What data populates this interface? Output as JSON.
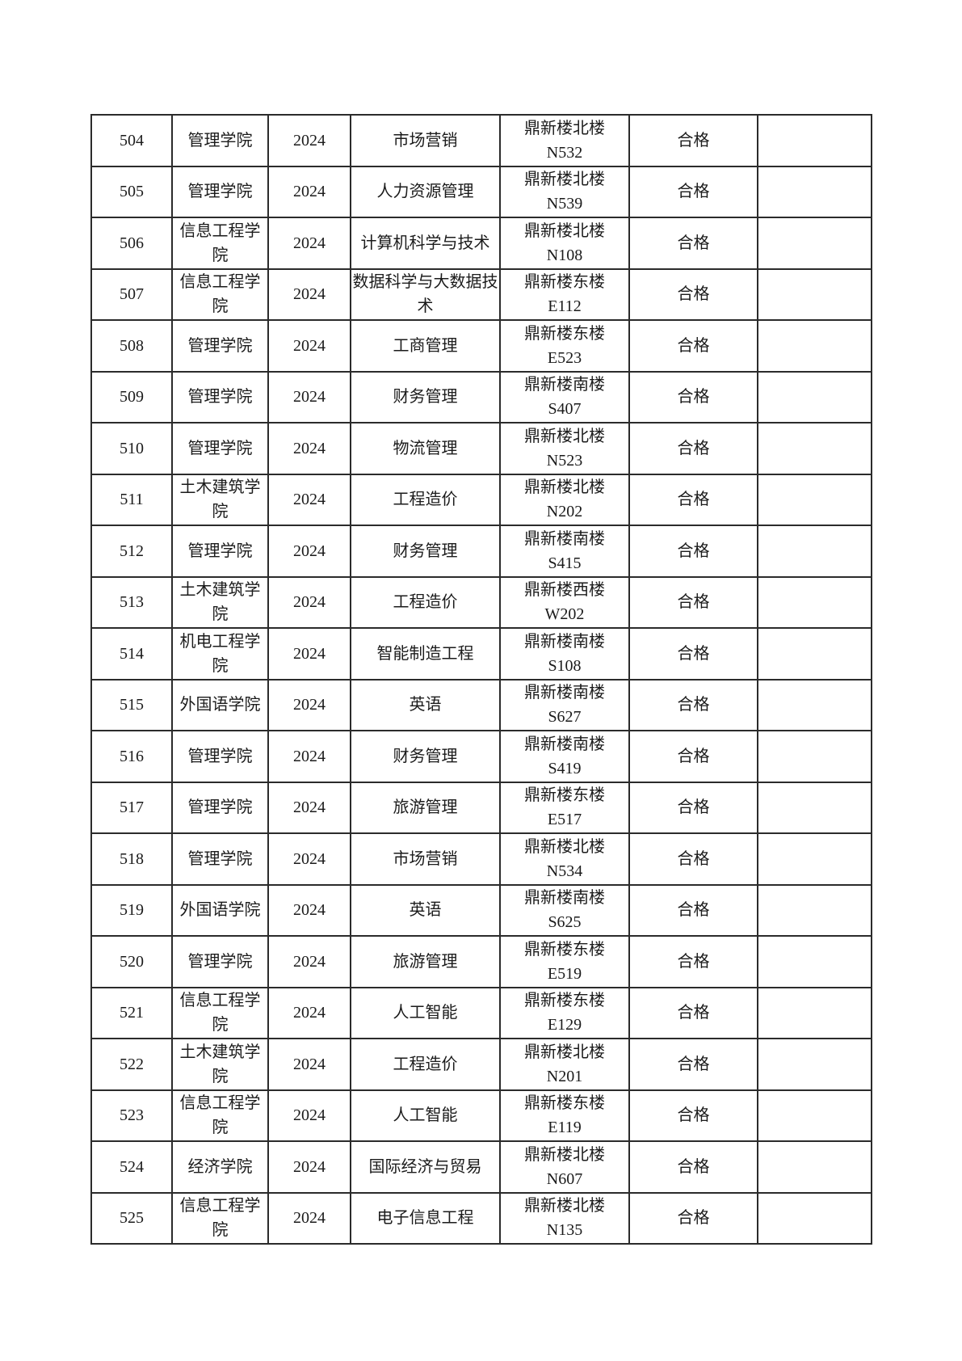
{
  "document": {
    "kind": "exam-room-qualification-table-page",
    "colors": {
      "background": "#ffffff",
      "border": "#2b2b2b",
      "text": "#1b1b1b"
    }
  },
  "table": {
    "rows": [
      {
        "no": "504",
        "college": "管理学院",
        "year": "2024",
        "major": "市场营销",
        "building": "鼎新楼北楼",
        "room": "N532",
        "result": "合格",
        "note": ""
      },
      {
        "no": "505",
        "college": "管理学院",
        "year": "2024",
        "major": "人力资源管理",
        "building": "鼎新楼北楼",
        "room": "N539",
        "result": "合格",
        "note": ""
      },
      {
        "no": "506",
        "college": "信息工程学院",
        "year": "2024",
        "major": "计算机科学与技术",
        "building": "鼎新楼北楼",
        "room": "N108",
        "result": "合格",
        "note": ""
      },
      {
        "no": "507",
        "college": "信息工程学院",
        "year": "2024",
        "major": "数据科学与大数据技术",
        "building": "鼎新楼东楼",
        "room": "E112",
        "result": "合格",
        "note": ""
      },
      {
        "no": "508",
        "college": "管理学院",
        "year": "2024",
        "major": "工商管理",
        "building": "鼎新楼东楼",
        "room": "E523",
        "result": "合格",
        "note": ""
      },
      {
        "no": "509",
        "college": "管理学院",
        "year": "2024",
        "major": "财务管理",
        "building": "鼎新楼南楼",
        "room": "S407",
        "result": "合格",
        "note": ""
      },
      {
        "no": "510",
        "college": "管理学院",
        "year": "2024",
        "major": "物流管理",
        "building": "鼎新楼北楼",
        "room": "N523",
        "result": "合格",
        "note": ""
      },
      {
        "no": "511",
        "college": "土木建筑学院",
        "year": "2024",
        "major": "工程造价",
        "building": "鼎新楼北楼",
        "room": "N202",
        "result": "合格",
        "note": ""
      },
      {
        "no": "512",
        "college": "管理学院",
        "year": "2024",
        "major": "财务管理",
        "building": "鼎新楼南楼",
        "room": "S415",
        "result": "合格",
        "note": ""
      },
      {
        "no": "513",
        "college": "土木建筑学院",
        "year": "2024",
        "major": "工程造价",
        "building": "鼎新楼西楼",
        "room": "W202",
        "result": "合格",
        "note": ""
      },
      {
        "no": "514",
        "college": "机电工程学院",
        "year": "2024",
        "major": "智能制造工程",
        "building": "鼎新楼南楼",
        "room": "S108",
        "result": "合格",
        "note": ""
      },
      {
        "no": "515",
        "college": "外国语学院",
        "year": "2024",
        "major": "英语",
        "building": "鼎新楼南楼",
        "room": "S627",
        "result": "合格",
        "note": ""
      },
      {
        "no": "516",
        "college": "管理学院",
        "year": "2024",
        "major": "财务管理",
        "building": "鼎新楼南楼",
        "room": "S419",
        "result": "合格",
        "note": ""
      },
      {
        "no": "517",
        "college": "管理学院",
        "year": "2024",
        "major": "旅游管理",
        "building": "鼎新楼东楼",
        "room": "E517",
        "result": "合格",
        "note": ""
      },
      {
        "no": "518",
        "college": "管理学院",
        "year": "2024",
        "major": "市场营销",
        "building": "鼎新楼北楼",
        "room": "N534",
        "result": "合格",
        "note": ""
      },
      {
        "no": "519",
        "college": "外国语学院",
        "year": "2024",
        "major": "英语",
        "building": "鼎新楼南楼",
        "room": "S625",
        "result": "合格",
        "note": ""
      },
      {
        "no": "520",
        "college": "管理学院",
        "year": "2024",
        "major": "旅游管理",
        "building": "鼎新楼东楼",
        "room": "E519",
        "result": "合格",
        "note": ""
      },
      {
        "no": "521",
        "college": "信息工程学院",
        "year": "2024",
        "major": "人工智能",
        "building": "鼎新楼东楼",
        "room": "E129",
        "result": "合格",
        "note": ""
      },
      {
        "no": "522",
        "college": "土木建筑学院",
        "year": "2024",
        "major": "工程造价",
        "building": "鼎新楼北楼",
        "room": "N201",
        "result": "合格",
        "note": ""
      },
      {
        "no": "523",
        "college": "信息工程学院",
        "year": "2024",
        "major": "人工智能",
        "building": "鼎新楼东楼",
        "room": "E119",
        "result": "合格",
        "note": ""
      },
      {
        "no": "524",
        "college": "经济学院",
        "year": "2024",
        "major": "国际经济与贸易",
        "building": "鼎新楼北楼",
        "room": "N607",
        "result": "合格",
        "note": ""
      },
      {
        "no": "525",
        "college": "信息工程学院",
        "year": "2024",
        "major": "电子信息工程",
        "building": "鼎新楼北楼",
        "room": "N135",
        "result": "合格",
        "note": ""
      }
    ]
  }
}
